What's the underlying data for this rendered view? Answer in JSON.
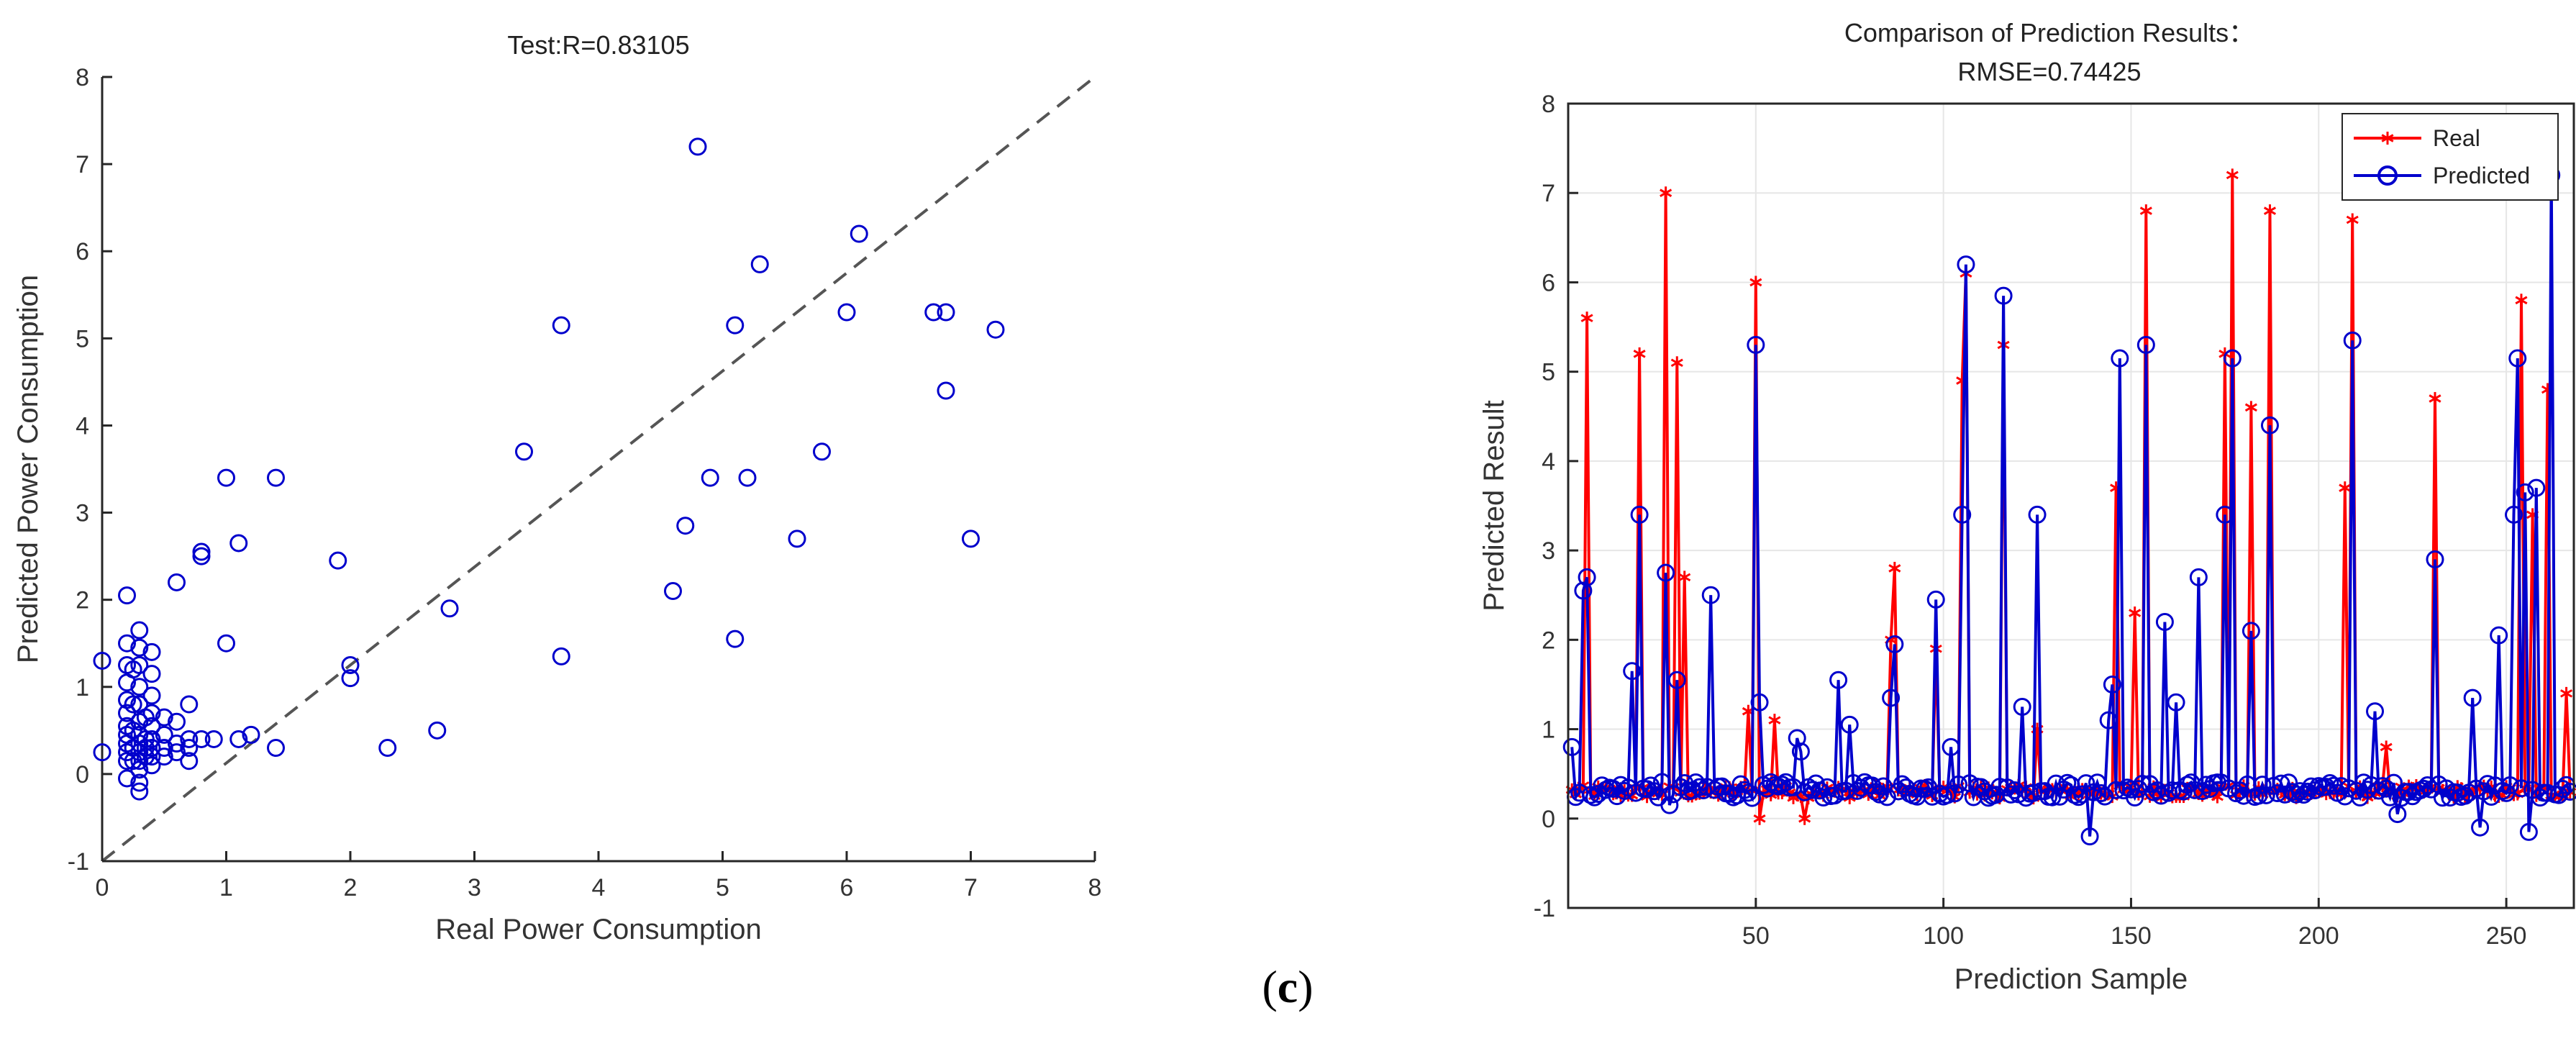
{
  "panel_label": {
    "open": "(",
    "letter": "c",
    "close": ")"
  },
  "colors": {
    "scatter": "#0000cc",
    "real": "#ff0000",
    "predicted": "#0000cc",
    "axis": "#262626",
    "grid": "#e6e6e6",
    "diagonal": "#555555"
  },
  "chart_data": [
    {
      "type": "scatter",
      "title": "Test:R=0.83105",
      "xlabel": "Real Power Consumption",
      "ylabel": "Predicted Power Consumption",
      "xlim": [
        0,
        8
      ],
      "ylim": [
        -1,
        8
      ],
      "xticks": [
        "0",
        "1",
        "2",
        "3",
        "4",
        "5",
        "6",
        "7",
        "8"
      ],
      "yticks": [
        "-1",
        "0",
        "1",
        "2",
        "3",
        "4",
        "5",
        "6",
        "7",
        "8"
      ],
      "reference_line": {
        "from": [
          0,
          -1
        ],
        "to": [
          8,
          8
        ],
        "style": "dashed"
      },
      "points": [
        [
          0,
          1.3
        ],
        [
          0,
          0.25
        ],
        [
          0.2,
          2.05
        ],
        [
          0.2,
          1.5
        ],
        [
          0.2,
          1.25
        ],
        [
          0.2,
          1.05
        ],
        [
          0.2,
          0.85
        ],
        [
          0.2,
          0.7
        ],
        [
          0.2,
          0.55
        ],
        [
          0.2,
          0.45
        ],
        [
          0.2,
          0.35
        ],
        [
          0.2,
          0.25
        ],
        [
          0.2,
          0.15
        ],
        [
          0.2,
          -0.05
        ],
        [
          0.25,
          1.2
        ],
        [
          0.25,
          0.8
        ],
        [
          0.25,
          0.5
        ],
        [
          0.25,
          0.3
        ],
        [
          0.25,
          0.15
        ],
        [
          0.3,
          1.65
        ],
        [
          0.3,
          1.45
        ],
        [
          0.3,
          1.25
        ],
        [
          0.3,
          1.0
        ],
        [
          0.3,
          0.8
        ],
        [
          0.3,
          0.6
        ],
        [
          0.3,
          0.45
        ],
        [
          0.3,
          0.35
        ],
        [
          0.3,
          0.25
        ],
        [
          0.3,
          0.15
        ],
        [
          0.3,
          0.05
        ],
        [
          0.3,
          -0.1
        ],
        [
          0.3,
          -0.2
        ],
        [
          0.35,
          0.65
        ],
        [
          0.35,
          0.4
        ],
        [
          0.35,
          0.3
        ],
        [
          0.35,
          0.2
        ],
        [
          0.4,
          1.4
        ],
        [
          0.4,
          1.15
        ],
        [
          0.4,
          0.9
        ],
        [
          0.4,
          0.7
        ],
        [
          0.4,
          0.55
        ],
        [
          0.4,
          0.4
        ],
        [
          0.4,
          0.3
        ],
        [
          0.4,
          0.2
        ],
        [
          0.4,
          0.1
        ],
        [
          0.5,
          0.65
        ],
        [
          0.5,
          0.45
        ],
        [
          0.5,
          0.3
        ],
        [
          0.5,
          0.2
        ],
        [
          0.6,
          2.2
        ],
        [
          0.6,
          0.6
        ],
        [
          0.6,
          0.35
        ],
        [
          0.6,
          0.25
        ],
        [
          0.7,
          0.8
        ],
        [
          0.7,
          0.4
        ],
        [
          0.7,
          0.3
        ],
        [
          0.7,
          0.15
        ],
        [
          0.8,
          2.55
        ],
        [
          0.8,
          2.5
        ],
        [
          0.8,
          0.4
        ],
        [
          0.9,
          0.4
        ],
        [
          1.0,
          3.4
        ],
        [
          1.0,
          1.5
        ],
        [
          1.1,
          2.65
        ],
        [
          1.1,
          0.4
        ],
        [
          1.2,
          0.45
        ],
        [
          1.4,
          3.4
        ],
        [
          1.4,
          0.3
        ],
        [
          1.9,
          2.45
        ],
        [
          2.0,
          1.25
        ],
        [
          2.0,
          1.1
        ],
        [
          2.3,
          0.3
        ],
        [
          2.7,
          0.5
        ],
        [
          2.8,
          1.9
        ],
        [
          3.4,
          3.7
        ],
        [
          3.7,
          5.15
        ],
        [
          3.7,
          1.35
        ],
        [
          4.6,
          2.1
        ],
        [
          4.7,
          2.85
        ],
        [
          4.8,
          7.2
        ],
        [
          4.9,
          3.4
        ],
        [
          5.1,
          5.15
        ],
        [
          5.1,
          1.55
        ],
        [
          5.2,
          3.4
        ],
        [
          5.3,
          5.85
        ],
        [
          5.6,
          2.7
        ],
        [
          5.8,
          3.7
        ],
        [
          6.0,
          5.3
        ],
        [
          6.1,
          6.2
        ],
        [
          6.7,
          5.3
        ],
        [
          6.8,
          5.3
        ],
        [
          6.8,
          4.4
        ],
        [
          7.0,
          2.7
        ],
        [
          7.2,
          5.1
        ]
      ]
    },
    {
      "type": "line",
      "title": "Comparison of Prediction Results：",
      "subtitle": "RMSE=0.74425",
      "xlabel": "Prediction Sample",
      "ylabel": "Predicted Result",
      "xlim": [
        0,
        268
      ],
      "ylim": [
        -1,
        8
      ],
      "xticks": [
        {
          "value": 50,
          "label": "50"
        },
        {
          "value": 100,
          "label": "100"
        },
        {
          "value": 150,
          "label": "150"
        },
        {
          "value": 200,
          "label": "200"
        },
        {
          "value": 250,
          "label": "250"
        }
      ],
      "yticks": [
        "-1",
        "0",
        "1",
        "2",
        "3",
        "4",
        "5",
        "6",
        "7",
        "8"
      ],
      "grid": true,
      "legend": {
        "position": "top-right",
        "entries": [
          "Real",
          "Predicted"
        ]
      },
      "baseline": 0.3,
      "series": [
        {
          "name": "Real",
          "marker": "asterisk",
          "spikes": [
            [
              5,
              5.6
            ],
            [
              19,
              5.2
            ],
            [
              26,
              7.0
            ],
            [
              29,
              5.1
            ],
            [
              31,
              2.7
            ],
            [
              48,
              1.2
            ],
            [
              50,
              6.0
            ],
            [
              51,
              0.0
            ],
            [
              55,
              1.1
            ],
            [
              63,
              0.0
            ],
            [
              86,
              2.0
            ],
            [
              87,
              2.8
            ],
            [
              98,
              1.9
            ],
            [
              105,
              4.9
            ],
            [
              106,
              6.1
            ],
            [
              116,
              5.3
            ],
            [
              125,
              1.0
            ],
            [
              146,
              3.7
            ],
            [
              151,
              2.3
            ],
            [
              154,
              6.8
            ],
            [
              175,
              5.2
            ],
            [
              177,
              7.2
            ],
            [
              182,
              4.6
            ],
            [
              187,
              6.8
            ],
            [
              207,
              3.7
            ],
            [
              209,
              6.7
            ],
            [
              218,
              0.8
            ],
            [
              231,
              4.7
            ],
            [
              254,
              5.8
            ],
            [
              257,
              3.4
            ],
            [
              261,
              4.8
            ],
            [
              266,
              1.4
            ]
          ]
        },
        {
          "name": "Predicted",
          "marker": "circle",
          "spikes": [
            [
              1,
              0.8
            ],
            [
              4,
              2.55
            ],
            [
              5,
              2.7
            ],
            [
              17,
              1.65
            ],
            [
              19,
              3.4
            ],
            [
              26,
              2.75
            ],
            [
              27,
              0.15
            ],
            [
              29,
              1.55
            ],
            [
              38,
              2.5
            ],
            [
              50,
              5.3
            ],
            [
              51,
              1.3
            ],
            [
              61,
              0.9
            ],
            [
              62,
              0.75
            ],
            [
              72,
              1.55
            ],
            [
              75,
              1.05
            ],
            [
              86,
              1.35
            ],
            [
              87,
              1.95
            ],
            [
              98,
              2.45
            ],
            [
              102,
              0.8
            ],
            [
              105,
              3.4
            ],
            [
              106,
              6.2
            ],
            [
              116,
              5.85
            ],
            [
              121,
              1.25
            ],
            [
              125,
              3.4
            ],
            [
              139,
              -0.2
            ],
            [
              144,
              1.1
            ],
            [
              145,
              1.5
            ],
            [
              147,
              5.15
            ],
            [
              154,
              5.3
            ],
            [
              159,
              2.2
            ],
            [
              162,
              1.3
            ],
            [
              168,
              2.7
            ],
            [
              175,
              3.4
            ],
            [
              177,
              5.15
            ],
            [
              182,
              2.1
            ],
            [
              187,
              4.4
            ],
            [
              209,
              5.35
            ],
            [
              215,
              1.2
            ],
            [
              221,
              0.05
            ],
            [
              231,
              2.9
            ],
            [
              241,
              1.35
            ],
            [
              243,
              -0.1
            ],
            [
              248,
              2.05
            ],
            [
              252,
              3.4
            ],
            [
              253,
              5.15
            ],
            [
              255,
              3.65
            ],
            [
              256,
              -0.15
            ],
            [
              258,
              3.7
            ],
            [
              262,
              7.2
            ],
            [
              267,
              0.3
            ]
          ]
        }
      ]
    }
  ]
}
